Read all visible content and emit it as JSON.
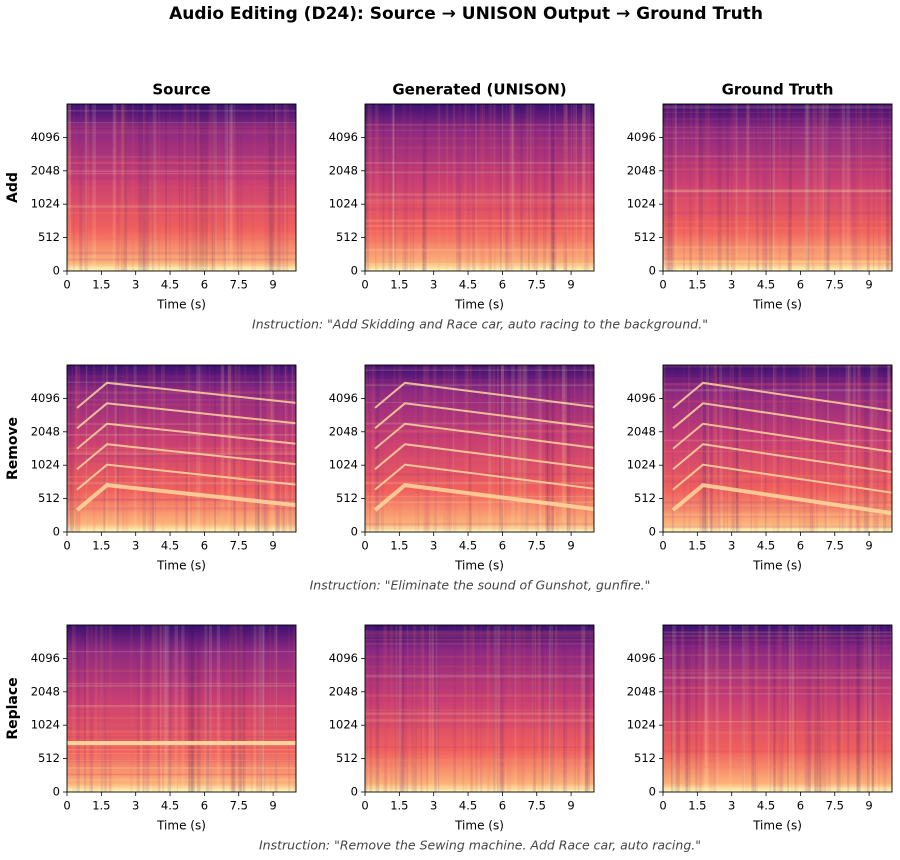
{
  "chart_data": {
    "type": "spectrogram",
    "title": "Audio Editing (D24): Source → UNISON Output → Ground Truth",
    "columns": [
      "Source",
      "Generated (UNISON)",
      "Ground Truth"
    ],
    "rows": [
      {
        "label": "Add",
        "instruction": "Instruction: \"Add Skidding and Race car, auto racing to the background.\""
      },
      {
        "label": "Remove",
        "instruction": "Instruction: \"Eliminate the sound of Gunshot, gunfire.\""
      },
      {
        "label": "Replace",
        "instruction": "Instruction: \"Remove the Sewing machine. Add Race car, auto racing.\""
      }
    ],
    "xlabel": "Time (s)",
    "xlim": [
      0,
      10
    ],
    "xticks": [
      0,
      1.5,
      3,
      4.5,
      6,
      7.5,
      9
    ],
    "ylim": [
      0,
      8192
    ],
    "yscale": "symlog",
    "ylinthresh": 512,
    "ybase": 2,
    "yticks": [
      0,
      512,
      1024,
      2048,
      4096
    ],
    "colormap": "magma"
  }
}
